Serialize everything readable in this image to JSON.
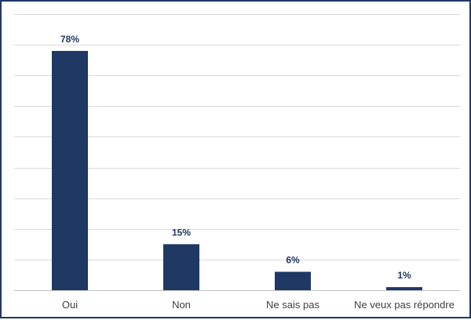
{
  "chart_data": {
    "type": "bar",
    "categories": [
      "Oui",
      "Non",
      "Ne sais pas",
      "Ne veux pas répondre"
    ],
    "values": [
      78,
      15,
      6,
      1
    ],
    "value_labels": [
      "78%",
      "15%",
      "6%",
      "1%"
    ],
    "title": "",
    "xlabel": "",
    "ylabel": "",
    "ylim": [
      0,
      90
    ],
    "grid": true,
    "legend": "none",
    "bar_color": "#1f3864",
    "label_color": "#1f3864",
    "border_color": "#1f3864"
  }
}
